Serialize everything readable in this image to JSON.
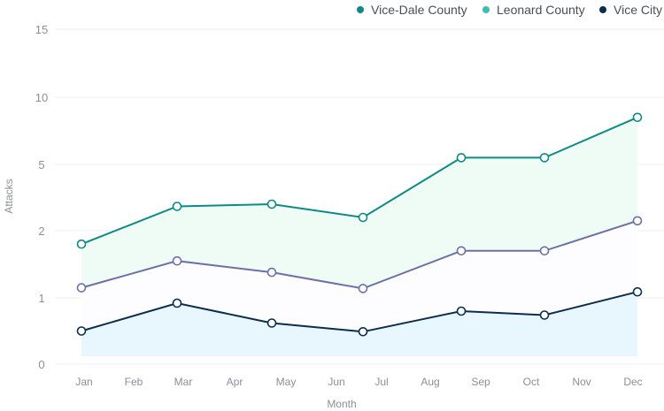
{
  "chart_data": {
    "type": "area",
    "stacked": false,
    "xlabel": "Month",
    "ylabel": "Attacks",
    "y_ticks": [
      "0",
      "1",
      "2",
      "5",
      "10",
      "15"
    ],
    "y_tick_values": [
      0,
      1,
      2,
      5,
      10,
      15
    ],
    "y_scale": "nonlinear (tick labels 0, 1, 2, 5, 10, 15 evenly spaced)",
    "categories": [
      "Jan",
      "Feb",
      "Mar",
      "Apr",
      "May",
      "Jun",
      "Jul",
      "Aug",
      "Sep",
      "Oct",
      "Nov",
      "Dec"
    ],
    "grid": "horizontal",
    "legend_position": "top-right",
    "series": [
      {
        "name": "Vice-Dale County",
        "color": "#0e8a86",
        "fill": "#eefcf5",
        "x": [
          0,
          2,
          4,
          6,
          8,
          9,
          11
        ],
        "values": [
          1.8,
          3.1,
          3.2,
          2.6,
          5.5,
          5.5,
          8.5
        ]
      },
      {
        "name": "Leonard County",
        "color": "#3fbcb4",
        "line_color": "#6c71a6",
        "fill": "#fdfcfe",
        "x": [
          0,
          2,
          4,
          6,
          8,
          9,
          11
        ],
        "values": [
          1.15,
          1.55,
          1.38,
          1.14,
          1.7,
          1.7,
          2.45
        ]
      },
      {
        "name": "Vice City",
        "color": "#0c2d4d",
        "fill": "#e8f7fd",
        "x": [
          0,
          2,
          4,
          6,
          8,
          9,
          11
        ],
        "values": [
          0.5,
          0.92,
          0.62,
          0.49,
          0.8,
          0.74,
          1.09
        ]
      }
    ]
  }
}
